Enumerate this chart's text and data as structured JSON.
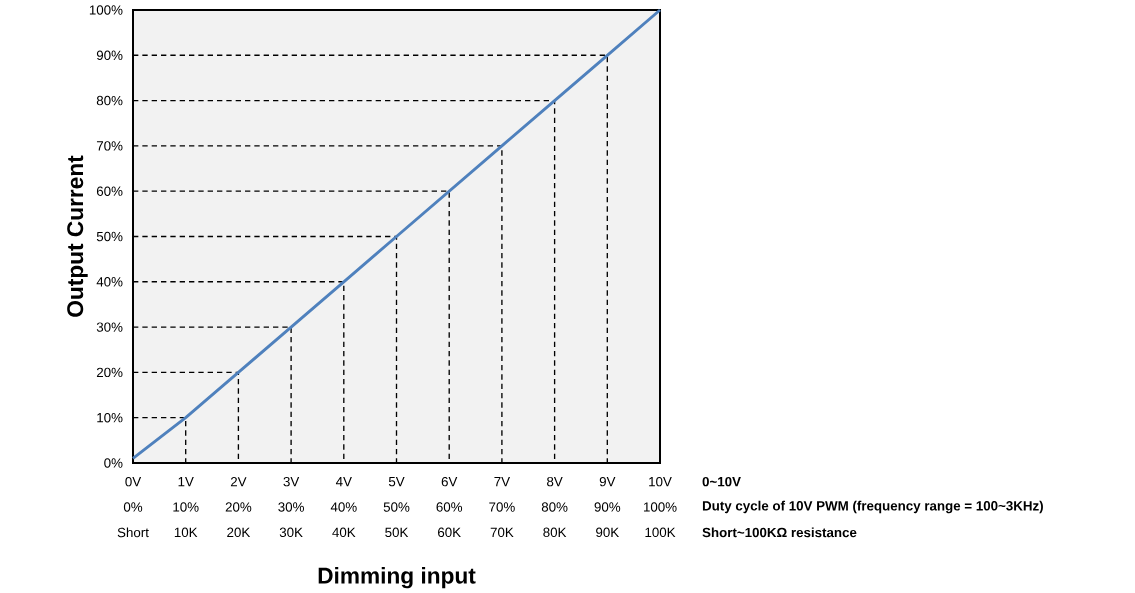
{
  "chart_data": {
    "type": "line",
    "xlabel": "Dimming input",
    "ylabel": "Output Current",
    "xlim": [
      0,
      10
    ],
    "ylim": [
      0,
      100
    ],
    "xticks": [
      {
        "value": 0,
        "label": "0V"
      },
      {
        "value": 1,
        "label": "1V"
      },
      {
        "value": 2,
        "label": "2V"
      },
      {
        "value": 3,
        "label": "3V"
      },
      {
        "value": 4,
        "label": "4V"
      },
      {
        "value": 5,
        "label": "5V"
      },
      {
        "value": 6,
        "label": "6V"
      },
      {
        "value": 7,
        "label": "7V"
      },
      {
        "value": 8,
        "label": "8V"
      },
      {
        "value": 9,
        "label": "9V"
      },
      {
        "value": 10,
        "label": "10V"
      }
    ],
    "yticks": [
      {
        "value": 0,
        "label": "0%"
      },
      {
        "value": 10,
        "label": "10%"
      },
      {
        "value": 20,
        "label": "20%"
      },
      {
        "value": 30,
        "label": "30%"
      },
      {
        "value": 40,
        "label": "40%"
      },
      {
        "value": 50,
        "label": "50%"
      },
      {
        "value": 60,
        "label": "60%"
      },
      {
        "value": 70,
        "label": "70%"
      },
      {
        "value": 80,
        "label": "80%"
      },
      {
        "value": 90,
        "label": "90%"
      },
      {
        "value": 100,
        "label": "100%"
      }
    ],
    "series": [
      {
        "color": "#000000",
        "line_style": "dashed",
        "x": [
          0,
          1,
          1
        ],
        "values": [
          10,
          10,
          0
        ]
      },
      {
        "color": "#000000",
        "line_style": "dashed",
        "x": [
          0,
          2,
          2
        ],
        "values": [
          20,
          20,
          0
        ]
      },
      {
        "color": "#000000",
        "line_style": "dashed",
        "x": [
          0,
          3,
          3
        ],
        "values": [
          30,
          30,
          0
        ]
      },
      {
        "color": "#000000",
        "line_style": "dashed",
        "x": [
          0,
          4,
          4
        ],
        "values": [
          40,
          40,
          0
        ]
      },
      {
        "color": "#000000",
        "line_style": "dashed",
        "x": [
          0,
          5,
          5
        ],
        "values": [
          50,
          50,
          0
        ]
      },
      {
        "color": "#000000",
        "line_style": "dashed",
        "x": [
          0,
          6,
          6
        ],
        "values": [
          60,
          60,
          0
        ]
      },
      {
        "color": "#000000",
        "line_style": "dashed",
        "x": [
          0,
          7,
          7
        ],
        "values": [
          70,
          70,
          0
        ]
      },
      {
        "color": "#000000",
        "line_style": "dashed",
        "x": [
          0,
          8,
          8
        ],
        "values": [
          80,
          80,
          0
        ]
      },
      {
        "color": "#000000",
        "line_style": "dashed",
        "x": [
          0,
          9,
          9
        ],
        "values": [
          90,
          90,
          0
        ]
      },
      {
        "color": "#4f81bd",
        "line_style": "solid",
        "x": [
          0,
          1,
          2,
          3,
          4,
          5,
          6,
          7,
          8,
          9,
          10
        ],
        "values": [
          1,
          10,
          20,
          30,
          40,
          50,
          60,
          70,
          80,
          90,
          100
        ]
      }
    ],
    "annotations": [
      "0~10V",
      "0%",
      "10%",
      "20%",
      "30%",
      "40%",
      "50%",
      "60%",
      "70%",
      "80%",
      "90%",
      "100%",
      "Duty cycle of 10V PWM (frequency range = 100~3KHz)",
      "Short",
      "10K",
      "20K",
      "30K",
      "40K",
      "50K",
      "60K",
      "70K",
      "80K",
      "90K",
      "100K",
      "Short~100KΩ  resistance"
    ]
  }
}
